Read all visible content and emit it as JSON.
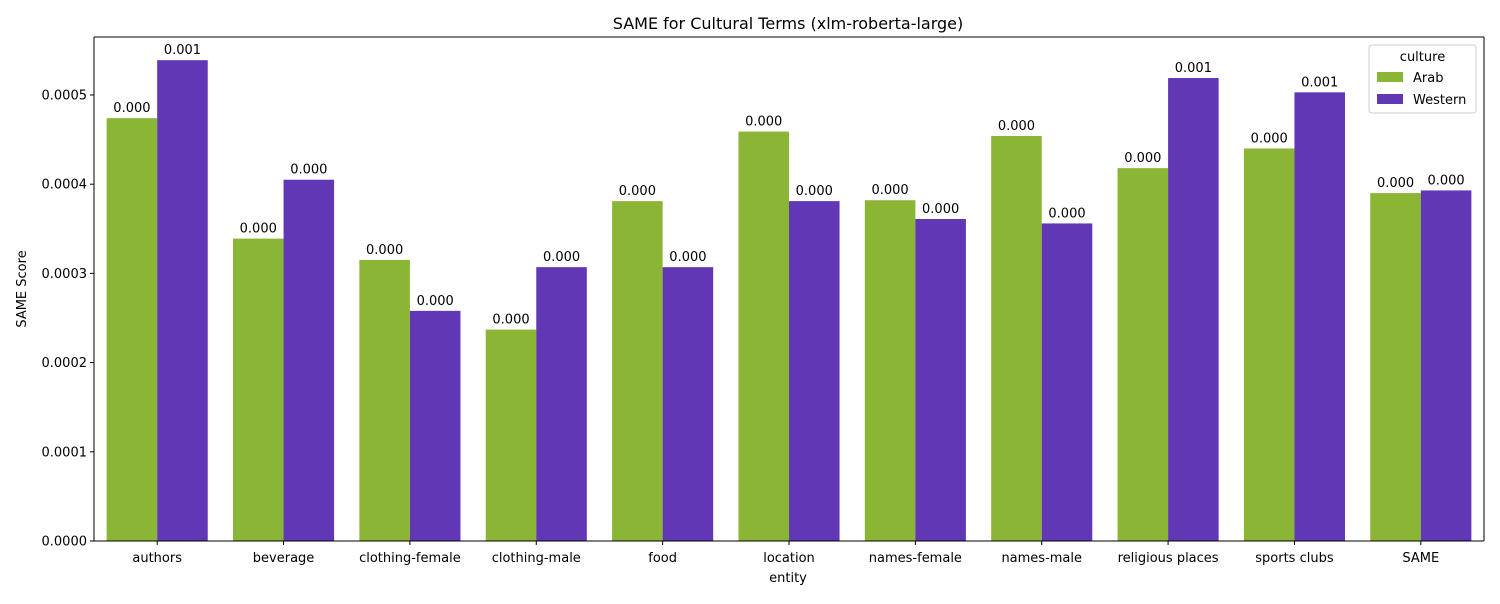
{
  "chart_data": {
    "type": "bar",
    "title": "SAME for Cultural Terms (xlm-roberta-large)",
    "xlabel": "entity",
    "ylabel": "SAME Score",
    "categories": [
      "authors",
      "beverage",
      "clothing-female",
      "clothing-male",
      "food",
      "location",
      "names-female",
      "names-male",
      "religious places",
      "sports clubs",
      "SAME"
    ],
    "series": [
      {
        "name": "Arab",
        "color": "#8ab535",
        "values": [
          0.000474,
          0.000339,
          0.000315,
          0.000237,
          0.000381,
          0.000459,
          0.000382,
          0.000454,
          0.000418,
          0.00044,
          0.00039
        ],
        "labels": [
          "0.000",
          "0.000",
          "0.000",
          "0.000",
          "0.000",
          "0.000",
          "0.000",
          "0.000",
          "0.000",
          "0.000",
          "0.000"
        ]
      },
      {
        "name": "Western",
        "color": "#6237b5",
        "values": [
          0.000539,
          0.000405,
          0.000258,
          0.000307,
          0.000307,
          0.000381,
          0.000361,
          0.000356,
          0.000519,
          0.000503,
          0.000393
        ],
        "labels": [
          "0.001",
          "0.000",
          "0.000",
          "0.000",
          "0.000",
          "0.000",
          "0.000",
          "0.000",
          "0.001",
          "0.001",
          "0.000"
        ]
      }
    ],
    "ylim": [
      0,
      0.000565
    ],
    "yticks": [
      0,
      0.0001,
      0.0002,
      0.0003,
      0.0004,
      0.0005
    ],
    "ytick_labels": [
      "0.0000",
      "0.0001",
      "0.0002",
      "0.0003",
      "0.0004",
      "0.0005"
    ],
    "legend": {
      "title": "culture",
      "position": "top-right",
      "entries": [
        "Arab",
        "Western"
      ]
    },
    "grid": false
  }
}
